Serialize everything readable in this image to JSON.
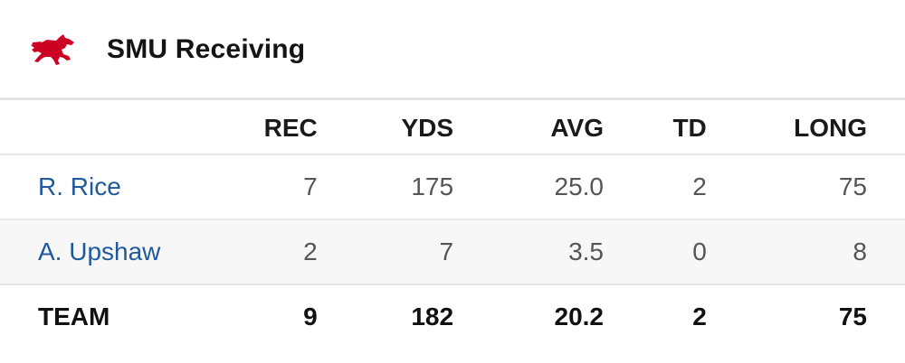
{
  "header": {
    "title": "SMU Receiving",
    "logo_icon": "mustang-logo-icon",
    "logo_color": "#cc0022"
  },
  "table": {
    "columns": [
      "",
      "REC",
      "YDS",
      "AVG",
      "TD",
      "LONG"
    ],
    "rows": [
      {
        "name": "R. Rice",
        "rec": "7",
        "yds": "175",
        "avg": "25.0",
        "td": "2",
        "long": "75"
      },
      {
        "name": "A. Upshaw",
        "rec": "2",
        "yds": "7",
        "avg": "3.5",
        "td": "0",
        "long": "8"
      }
    ],
    "team": {
      "name": "TEAM",
      "rec": "9",
      "yds": "182",
      "avg": "20.2",
      "td": "2",
      "long": "75"
    }
  },
  "colors": {
    "player_link": "#1f5a9c",
    "alt_row_bg": "#f7f7f7",
    "divider": "#e3e3e3"
  }
}
